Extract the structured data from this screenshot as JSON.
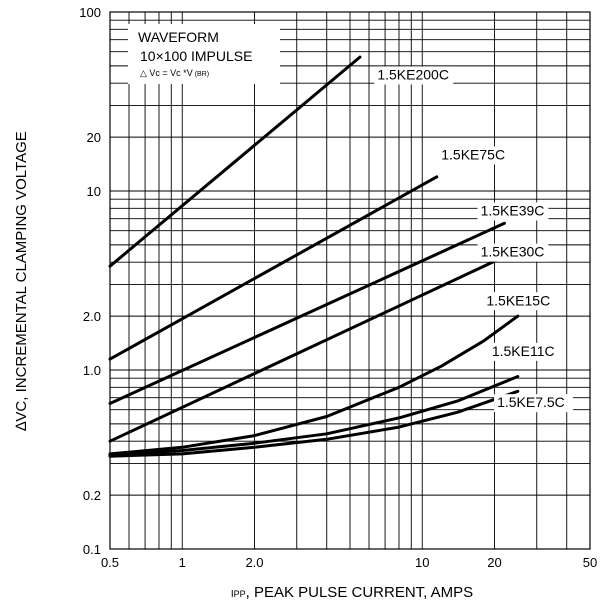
{
  "chart_data": {
    "type": "line",
    "x_scale": "log",
    "y_scale": "log",
    "xlim": [
      0.5,
      50
    ],
    "ylim": [
      0.1,
      100
    ],
    "grid": true,
    "xlabel_prefix": "I",
    "xlabel_sub": "PP",
    "xlabel_rest": ", PEAK PULSE CURRENT, AMPS",
    "ylabel": "∆VC, INCREMENTAL CLAMPING VOLTAGE",
    "x_tick_labels": [
      {
        "value": 0.5,
        "label": "0.5"
      },
      {
        "value": 1,
        "label": "1"
      },
      {
        "value": 2,
        "label": "2.0"
      },
      {
        "value": 10,
        "label": "10"
      },
      {
        "value": 20,
        "label": "20"
      },
      {
        "value": 50,
        "label": "50"
      }
    ],
    "y_tick_labels": [
      {
        "value": 0.1,
        "label": "0.1"
      },
      {
        "value": 0.2,
        "label": "0.2"
      },
      {
        "value": 1,
        "label": "1.0"
      },
      {
        "value": 2,
        "label": "2.0"
      },
      {
        "value": 10,
        "label": "10"
      },
      {
        "value": 20,
        "label": "20"
      },
      {
        "value": 100,
        "label": "100"
      }
    ],
    "annotation": {
      "line1": "WAVEFORM",
      "line2": "10×100 IMPULSE",
      "line3": "△ Vc = Vc *V",
      "line3_sub": "(BR)"
    },
    "series": [
      {
        "name": "1.5KE200C",
        "x": [
          0.5,
          5.5
        ],
        "y": [
          3.8,
          56
        ]
      },
      {
        "name": "1.5KE75C",
        "x": [
          0.5,
          11.5
        ],
        "y": [
          1.15,
          12
        ]
      },
      {
        "name": "1.5KE39C",
        "x": [
          0.5,
          22
        ],
        "y": [
          0.65,
          6.6
        ]
      },
      {
        "name": "1.5KE30C",
        "x": [
          0.5,
          22
        ],
        "y": [
          0.4,
          4.3
        ]
      },
      {
        "name": "1.5KE15C",
        "x": [
          0.5,
          1,
          2,
          4,
          8,
          12,
          18,
          25
        ],
        "y": [
          0.34,
          0.37,
          0.43,
          0.55,
          0.8,
          1.05,
          1.45,
          2.0
        ]
      },
      {
        "name": "1.5KE11C",
        "x": [
          0.5,
          1,
          2,
          4,
          8,
          14,
          25
        ],
        "y": [
          0.335,
          0.355,
          0.39,
          0.44,
          0.54,
          0.67,
          0.92
        ]
      },
      {
        "name": "1.5KE7.5C",
        "x": [
          0.5,
          1,
          2,
          4,
          8,
          14,
          25
        ],
        "y": [
          0.33,
          0.34,
          0.37,
          0.41,
          0.48,
          0.58,
          0.76
        ]
      }
    ],
    "label_anchor": [
      {
        "x": 6.5,
        "y": 42
      },
      {
        "x": 12,
        "y": 15
      },
      {
        "x": 17.5,
        "y": 7.3
      },
      {
        "x": 17.5,
        "y": 4.3
      },
      {
        "x": 18.5,
        "y": 2.3
      },
      {
        "x": 19.5,
        "y": 1.2
      },
      {
        "x": 20.5,
        "y": 0.62
      }
    ]
  }
}
